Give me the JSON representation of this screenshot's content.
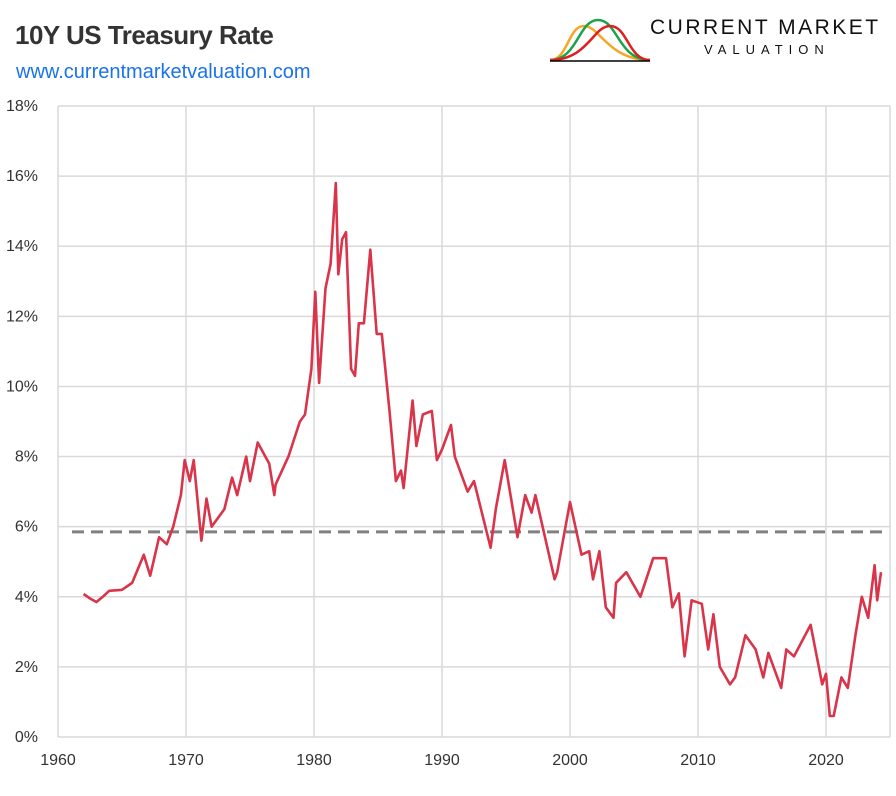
{
  "header": {
    "title": "10Y US Treasury Rate",
    "url": "www.currentmarketvaluation.com"
  },
  "logo": {
    "name": "CURRENT MARKET",
    "sub": "VALUATION",
    "colors": [
      "#f5a623",
      "#1aa34a",
      "#e02020"
    ]
  },
  "chart_data": {
    "type": "line",
    "title": "10Y US Treasury Rate",
    "xlabel": "",
    "ylabel": "",
    "xlim": [
      1960,
      2024.6
    ],
    "ylim": [
      0,
      18
    ],
    "x_ticks": [
      1960,
      1970,
      1980,
      1990,
      2000,
      2010,
      2020
    ],
    "y_ticks": [
      0,
      2,
      4,
      6,
      8,
      10,
      12,
      14,
      16,
      18
    ],
    "y_tick_labels": [
      "0%",
      "2%",
      "4%",
      "6%",
      "8%",
      "10%",
      "12%",
      "14%",
      "16%",
      "18%"
    ],
    "grid": true,
    "series": [
      {
        "color": "#d9344a",
        "points": [
          [
            1962.0,
            4.08
          ],
          [
            1962.5,
            3.95
          ],
          [
            1963.0,
            3.85
          ],
          [
            1963.5,
            4.0
          ],
          [
            1964.0,
            4.17
          ],
          [
            1965.0,
            4.2
          ],
          [
            1965.8,
            4.4
          ],
          [
            1966.7,
            5.2
          ],
          [
            1967.2,
            4.6
          ],
          [
            1967.9,
            5.7
          ],
          [
            1968.5,
            5.5
          ],
          [
            1969.0,
            6.0
          ],
          [
            1969.6,
            6.9
          ],
          [
            1969.9,
            7.9
          ],
          [
            1970.3,
            7.3
          ],
          [
            1970.6,
            7.9
          ],
          [
            1971.2,
            5.6
          ],
          [
            1971.6,
            6.8
          ],
          [
            1972.0,
            6.0
          ],
          [
            1973.0,
            6.5
          ],
          [
            1973.6,
            7.4
          ],
          [
            1974.0,
            6.9
          ],
          [
            1974.7,
            8.0
          ],
          [
            1975.0,
            7.3
          ],
          [
            1975.6,
            8.4
          ],
          [
            1976.5,
            7.8
          ],
          [
            1976.9,
            6.9
          ],
          [
            1977.0,
            7.2
          ],
          [
            1978.0,
            8.0
          ],
          [
            1978.9,
            9.0
          ],
          [
            1979.3,
            9.2
          ],
          [
            1979.8,
            10.5
          ],
          [
            1980.1,
            12.7
          ],
          [
            1980.4,
            10.1
          ],
          [
            1980.9,
            12.8
          ],
          [
            1981.3,
            13.5
          ],
          [
            1981.7,
            15.8
          ],
          [
            1981.9,
            13.2
          ],
          [
            1982.2,
            14.2
          ],
          [
            1982.5,
            14.4
          ],
          [
            1982.9,
            10.5
          ],
          [
            1983.2,
            10.3
          ],
          [
            1983.5,
            11.8
          ],
          [
            1983.9,
            11.8
          ],
          [
            1984.4,
            13.9
          ],
          [
            1984.9,
            11.5
          ],
          [
            1985.3,
            11.5
          ],
          [
            1985.9,
            9.3
          ],
          [
            1986.4,
            7.3
          ],
          [
            1986.8,
            7.6
          ],
          [
            1987.0,
            7.1
          ],
          [
            1987.7,
            9.6
          ],
          [
            1988.0,
            8.3
          ],
          [
            1988.5,
            9.2
          ],
          [
            1989.2,
            9.3
          ],
          [
            1989.6,
            7.9
          ],
          [
            1990.0,
            8.2
          ],
          [
            1990.7,
            8.9
          ],
          [
            1991.0,
            8.0
          ],
          [
            1992.0,
            7.0
          ],
          [
            1992.5,
            7.3
          ],
          [
            1993.8,
            5.4
          ],
          [
            1994.2,
            6.5
          ],
          [
            1994.9,
            7.9
          ],
          [
            1995.9,
            5.7
          ],
          [
            1996.5,
            6.9
          ],
          [
            1997.0,
            6.4
          ],
          [
            1997.3,
            6.9
          ],
          [
            1998.8,
            4.5
          ],
          [
            1999.0,
            4.7
          ],
          [
            2000.0,
            6.7
          ],
          [
            2000.9,
            5.2
          ],
          [
            2001.5,
            5.3
          ],
          [
            2001.8,
            4.5
          ],
          [
            2002.3,
            5.3
          ],
          [
            2002.8,
            3.7
          ],
          [
            2003.4,
            3.4
          ],
          [
            2003.6,
            4.4
          ],
          [
            2004.4,
            4.7
          ],
          [
            2005.5,
            4.0
          ],
          [
            2006.5,
            5.1
          ],
          [
            2007.5,
            5.1
          ],
          [
            2008.0,
            3.7
          ],
          [
            2008.5,
            4.1
          ],
          [
            2008.95,
            2.3
          ],
          [
            2009.5,
            3.9
          ],
          [
            2010.3,
            3.8
          ],
          [
            2010.8,
            2.5
          ],
          [
            2011.2,
            3.5
          ],
          [
            2011.7,
            2.0
          ],
          [
            2012.5,
            1.5
          ],
          [
            2012.9,
            1.7
          ],
          [
            2013.7,
            2.9
          ],
          [
            2014.5,
            2.5
          ],
          [
            2015.1,
            1.7
          ],
          [
            2015.5,
            2.4
          ],
          [
            2016.5,
            1.4
          ],
          [
            2016.9,
            2.5
          ],
          [
            2017.5,
            2.3
          ],
          [
            2018.8,
            3.2
          ],
          [
            2019.7,
            1.5
          ],
          [
            2020.0,
            1.8
          ],
          [
            2020.3,
            0.6
          ],
          [
            2020.6,
            0.6
          ],
          [
            2021.2,
            1.7
          ],
          [
            2021.7,
            1.4
          ],
          [
            2022.3,
            2.9
          ],
          [
            2022.8,
            4.0
          ],
          [
            2023.3,
            3.4
          ],
          [
            2023.8,
            4.9
          ],
          [
            2024.0,
            3.9
          ],
          [
            2024.3,
            4.7
          ]
        ]
      }
    ],
    "reference_line": {
      "y": 5.85,
      "style": "dashed",
      "color": "#808080"
    }
  }
}
